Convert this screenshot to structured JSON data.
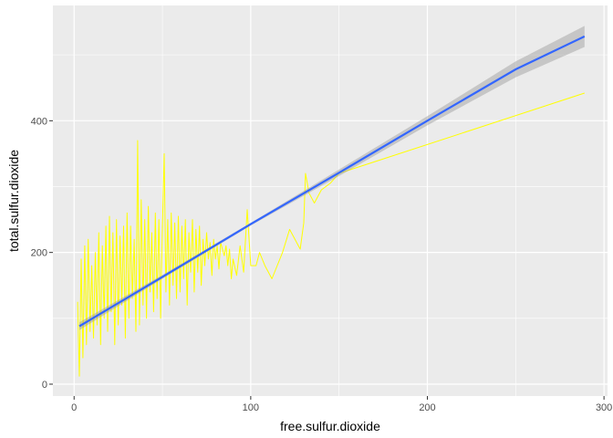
{
  "chart_data": {
    "type": "line",
    "title": "",
    "xlabel": "free.sulfur.dioxide",
    "ylabel": "total.sulfur.dioxide",
    "xlim": [
      -12,
      302
    ],
    "ylim": [
      -18,
      575
    ],
    "x_ticks": [
      0,
      100,
      200,
      300
    ],
    "x_tick_labels": [
      "0",
      "100",
      "200",
      "300"
    ],
    "y_ticks": [
      0,
      200,
      400
    ],
    "y_tick_labels": [
      "0",
      "200",
      "400"
    ],
    "grid": true,
    "legend": "none",
    "series": [
      {
        "kind": "line",
        "color": "#ffff00",
        "x": [
          2,
          3,
          4,
          5,
          6,
          7,
          8,
          9,
          10,
          11,
          12,
          13,
          14,
          15,
          16,
          17,
          18,
          19,
          20,
          21,
          22,
          23,
          24,
          25,
          26,
          27,
          28,
          29,
          30,
          31,
          32,
          33,
          34,
          35,
          36,
          37,
          38,
          39,
          40,
          41,
          42,
          43,
          44,
          45,
          46,
          47,
          48,
          49,
          50,
          51,
          52,
          53,
          54,
          55,
          56,
          57,
          58,
          59,
          60,
          61,
          62,
          63,
          64,
          65,
          66,
          67,
          68,
          69,
          70,
          71,
          72,
          73,
          74,
          75,
          76,
          77,
          78,
          79,
          80,
          81,
          82,
          83,
          85,
          86,
          87,
          88,
          89,
          90,
          92,
          94,
          96,
          98,
          100,
          103,
          105,
          108,
          112,
          118,
          122,
          128,
          130,
          131,
          133,
          136,
          140,
          145,
          150,
          289
        ],
        "y": [
          125,
          12,
          190,
          40,
          210,
          60,
          220,
          80,
          180,
          70,
          200,
          90,
          230,
          60,
          210,
          100,
          240,
          80,
          255,
          110,
          230,
          60,
          250,
          90,
          225,
          120,
          240,
          70,
          260,
          100,
          240,
          130,
          220,
          80,
          370,
          90,
          280,
          120,
          250,
          100,
          270,
          140,
          230,
          110,
          260,
          130,
          250,
          100,
          240,
          350,
          140,
          250,
          120,
          260,
          150,
          245,
          130,
          255,
          140,
          240,
          160,
          250,
          120,
          230,
          170,
          250,
          140,
          235,
          170,
          240,
          150,
          220,
          180,
          230,
          190,
          215,
          165,
          220,
          190,
          210,
          175,
          215,
          195,
          210,
          180,
          205,
          160,
          190,
          165,
          210,
          170,
          265,
          180,
          180,
          200,
          180,
          160,
          200,
          235,
          205,
          245,
          320,
          290,
          275,
          295,
          305,
          320,
          442
        ]
      },
      {
        "kind": "smooth",
        "color": "#3366ff",
        "ribbon_color": "#999999",
        "x": [
          3,
          50,
          100,
          150,
          200,
          250,
          289
        ],
        "y": [
          88,
          163,
          243,
          321,
          400,
          478,
          528
        ],
        "ymin": [
          82,
          160,
          241,
          316,
          393,
          466,
          512
        ],
        "ymax": [
          94,
          166,
          245,
          326,
          407,
          490,
          544
        ]
      }
    ]
  }
}
